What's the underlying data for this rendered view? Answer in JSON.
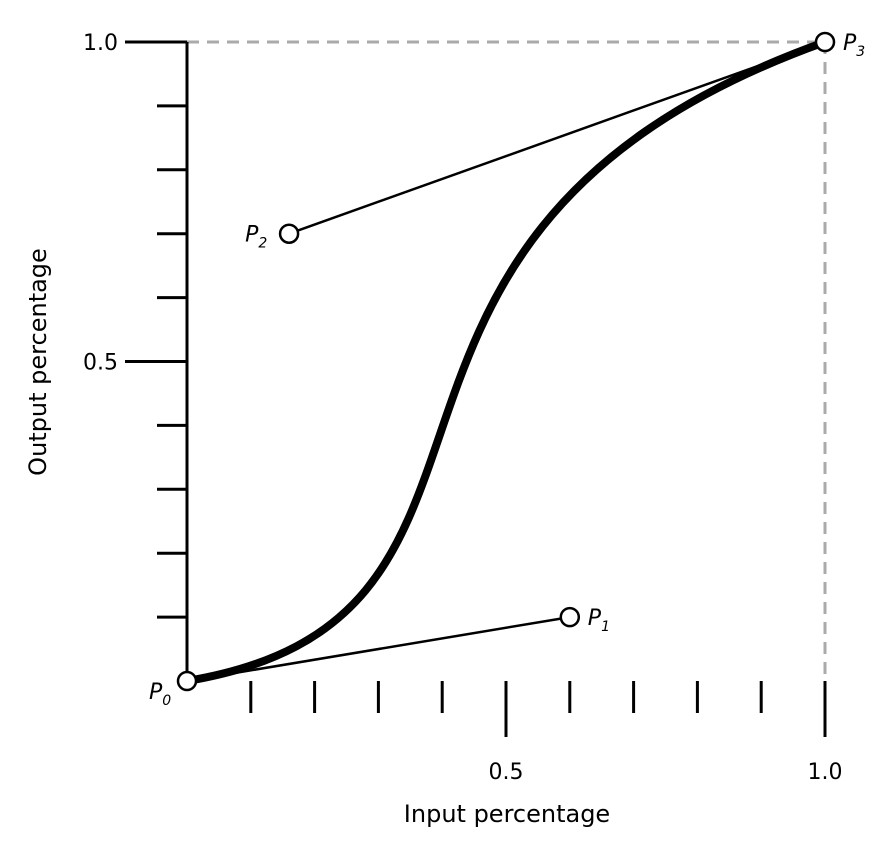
{
  "axes": {
    "x_title": "Input percentage",
    "y_title": "Output percentage",
    "x_ticks": [
      "0.5",
      "1.0"
    ],
    "y_ticks": [
      "0.5",
      "1.0"
    ],
    "minor_tick_step": 0.1
  },
  "points": [
    {
      "id": "P0",
      "letter": "P",
      "sub": "0",
      "x": 0.0,
      "y": 0.0
    },
    {
      "id": "P1",
      "letter": "P",
      "sub": "1",
      "x": 0.6,
      "y": 0.1
    },
    {
      "id": "P2",
      "letter": "P",
      "sub": "2",
      "x": 0.16,
      "y": 0.7
    },
    {
      "id": "P3",
      "letter": "P",
      "sub": "3",
      "x": 1.0,
      "y": 1.0
    }
  ],
  "colors": {
    "guide": "#aaaaaa",
    "curve": "#000000"
  }
}
